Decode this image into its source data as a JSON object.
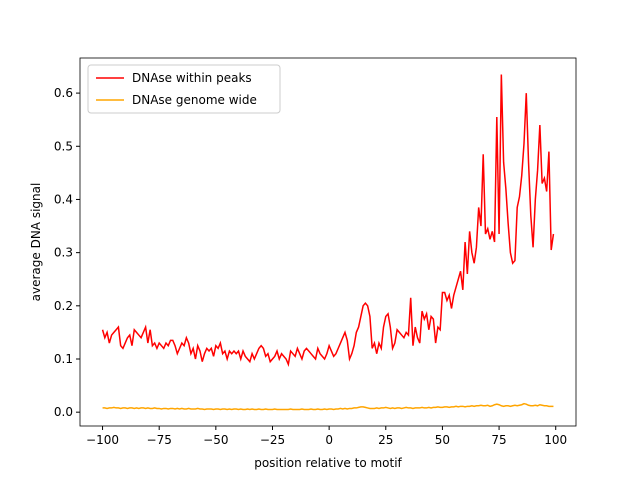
{
  "chart_data": {
    "type": "line",
    "xlabel": "position relative to motif",
    "ylabel": "average DNA signal",
    "x": [
      -100,
      -99,
      -98,
      -97,
      -96,
      -95,
      -94,
      -93,
      -92,
      -91,
      -90,
      -89,
      -88,
      -87,
      -86,
      -85,
      -84,
      -83,
      -82,
      -81,
      -80,
      -79,
      -78,
      -77,
      -76,
      -75,
      -74,
      -73,
      -72,
      -71,
      -70,
      -69,
      -68,
      -67,
      -66,
      -65,
      -64,
      -63,
      -62,
      -61,
      -60,
      -59,
      -58,
      -57,
      -56,
      -55,
      -54,
      -53,
      -52,
      -51,
      -50,
      -49,
      -48,
      -47,
      -46,
      -45,
      -44,
      -43,
      -42,
      -41,
      -40,
      -39,
      -38,
      -37,
      -36,
      -35,
      -34,
      -33,
      -32,
      -31,
      -30,
      -29,
      -28,
      -27,
      -26,
      -25,
      -24,
      -23,
      -22,
      -21,
      -20,
      -19,
      -18,
      -17,
      -16,
      -15,
      -14,
      -13,
      -12,
      -11,
      -10,
      -9,
      -8,
      -7,
      -6,
      -5,
      -4,
      -3,
      -2,
      -1,
      0,
      1,
      2,
      3,
      4,
      5,
      6,
      7,
      8,
      9,
      10,
      11,
      12,
      13,
      14,
      15,
      16,
      17,
      18,
      19,
      20,
      21,
      22,
      23,
      24,
      25,
      26,
      27,
      28,
      29,
      30,
      31,
      32,
      33,
      34,
      35,
      36,
      37,
      38,
      39,
      40,
      41,
      42,
      43,
      44,
      45,
      46,
      47,
      48,
      49,
      50,
      51,
      52,
      53,
      54,
      55,
      56,
      57,
      58,
      59,
      60,
      61,
      62,
      63,
      64,
      65,
      66,
      67,
      68,
      69,
      70,
      71,
      72,
      73,
      74,
      75,
      76,
      77,
      78,
      79,
      80,
      81,
      82,
      83,
      84,
      85,
      86,
      87,
      88,
      89,
      90,
      91,
      92,
      93,
      94,
      95,
      96,
      97,
      98,
      99
    ],
    "series": [
      {
        "name": "DNAse within peaks",
        "color": "#ff0000",
        "values": [
          0.155,
          0.14,
          0.15,
          0.13,
          0.145,
          0.15,
          0.155,
          0.16,
          0.125,
          0.12,
          0.13,
          0.14,
          0.145,
          0.125,
          0.155,
          0.15,
          0.145,
          0.14,
          0.15,
          0.16,
          0.13,
          0.155,
          0.125,
          0.13,
          0.12,
          0.13,
          0.125,
          0.12,
          0.13,
          0.125,
          0.135,
          0.135,
          0.125,
          0.11,
          0.12,
          0.13,
          0.125,
          0.14,
          0.13,
          0.11,
          0.12,
          0.1,
          0.125,
          0.115,
          0.095,
          0.11,
          0.12,
          0.115,
          0.12,
          0.105,
          0.125,
          0.12,
          0.13,
          0.11,
          0.115,
          0.1,
          0.115,
          0.11,
          0.115,
          0.11,
          0.115,
          0.1,
          0.115,
          0.105,
          0.1,
          0.095,
          0.11,
          0.1,
          0.11,
          0.12,
          0.125,
          0.12,
          0.105,
          0.11,
          0.095,
          0.1,
          0.105,
          0.115,
          0.1,
          0.11,
          0.105,
          0.1,
          0.09,
          0.115,
          0.11,
          0.105,
          0.12,
          0.11,
          0.1,
          0.115,
          0.12,
          0.115,
          0.11,
          0.105,
          0.1,
          0.12,
          0.11,
          0.105,
          0.1,
          0.11,
          0.125,
          0.115,
          0.105,
          0.11,
          0.12,
          0.13,
          0.14,
          0.15,
          0.135,
          0.1,
          0.11,
          0.125,
          0.15,
          0.16,
          0.18,
          0.2,
          0.205,
          0.2,
          0.18,
          0.12,
          0.13,
          0.11,
          0.13,
          0.12,
          0.16,
          0.18,
          0.185,
          0.16,
          0.12,
          0.13,
          0.155,
          0.15,
          0.145,
          0.14,
          0.15,
          0.145,
          0.215,
          0.125,
          0.16,
          0.14,
          0.13,
          0.19,
          0.175,
          0.185,
          0.155,
          0.18,
          0.175,
          0.13,
          0.16,
          0.155,
          0.225,
          0.225,
          0.21,
          0.22,
          0.195,
          0.22,
          0.235,
          0.25,
          0.265,
          0.23,
          0.32,
          0.26,
          0.34,
          0.3,
          0.28,
          0.31,
          0.385,
          0.35,
          0.485,
          0.335,
          0.345,
          0.325,
          0.34,
          0.32,
          0.555,
          0.335,
          0.635,
          0.47,
          0.42,
          0.355,
          0.3,
          0.28,
          0.285,
          0.385,
          0.405,
          0.445,
          0.505,
          0.6,
          0.47,
          0.37,
          0.31,
          0.4,
          0.455,
          0.54,
          0.43,
          0.44,
          0.415,
          0.49,
          0.305,
          0.335
        ]
      },
      {
        "name": "DNAse genome wide",
        "color": "#ffa500",
        "values": [
          0.008,
          0.008,
          0.007,
          0.008,
          0.008,
          0.009,
          0.008,
          0.008,
          0.007,
          0.008,
          0.008,
          0.007,
          0.008,
          0.008,
          0.007,
          0.008,
          0.007,
          0.008,
          0.008,
          0.007,
          0.008,
          0.007,
          0.007,
          0.008,
          0.007,
          0.007,
          0.006,
          0.007,
          0.007,
          0.006,
          0.007,
          0.007,
          0.006,
          0.007,
          0.006,
          0.007,
          0.006,
          0.006,
          0.007,
          0.006,
          0.006,
          0.006,
          0.007,
          0.006,
          0.006,
          0.005,
          0.006,
          0.006,
          0.006,
          0.005,
          0.006,
          0.006,
          0.005,
          0.006,
          0.006,
          0.005,
          0.006,
          0.005,
          0.006,
          0.006,
          0.005,
          0.006,
          0.005,
          0.005,
          0.006,
          0.005,
          0.006,
          0.005,
          0.005,
          0.006,
          0.005,
          0.005,
          0.006,
          0.005,
          0.005,
          0.005,
          0.006,
          0.005,
          0.005,
          0.005,
          0.005,
          0.005,
          0.005,
          0.006,
          0.005,
          0.005,
          0.005,
          0.005,
          0.006,
          0.005,
          0.005,
          0.005,
          0.006,
          0.005,
          0.005,
          0.006,
          0.005,
          0.005,
          0.006,
          0.005,
          0.006,
          0.006,
          0.005,
          0.006,
          0.006,
          0.007,
          0.006,
          0.007,
          0.006,
          0.007,
          0.007,
          0.008,
          0.008,
          0.009,
          0.01,
          0.01,
          0.009,
          0.008,
          0.007,
          0.007,
          0.007,
          0.008,
          0.007,
          0.008,
          0.008,
          0.009,
          0.008,
          0.007,
          0.008,
          0.007,
          0.008,
          0.008,
          0.007,
          0.008,
          0.009,
          0.008,
          0.008,
          0.007,
          0.008,
          0.008,
          0.008,
          0.009,
          0.008,
          0.008,
          0.009,
          0.008,
          0.009,
          0.009,
          0.01,
          0.009,
          0.009,
          0.01,
          0.01,
          0.009,
          0.01,
          0.01,
          0.011,
          0.01,
          0.011,
          0.011,
          0.01,
          0.011,
          0.011,
          0.012,
          0.011,
          0.012,
          0.012,
          0.013,
          0.012,
          0.012,
          0.013,
          0.011,
          0.012,
          0.014,
          0.015,
          0.014,
          0.012,
          0.011,
          0.012,
          0.012,
          0.011,
          0.012,
          0.013,
          0.012,
          0.013,
          0.014,
          0.016,
          0.015,
          0.013,
          0.012,
          0.012,
          0.013,
          0.012,
          0.014,
          0.013,
          0.012,
          0.012,
          0.011,
          0.011,
          0.011
        ]
      }
    ],
    "xlim": [
      -109.95,
      108.95
    ],
    "ylim": [
      -0.026,
      0.666
    ],
    "xticks": [
      {
        "value": -100,
        "label": "−100"
      },
      {
        "value": -75,
        "label": "−75"
      },
      {
        "value": -50,
        "label": "−50"
      },
      {
        "value": -25,
        "label": "−25"
      },
      0,
      25,
      50,
      75,
      100
    ],
    "yticks": [
      {
        "value": 0,
        "label": "0.0"
      },
      0.1,
      0.2,
      0.3,
      0.4,
      0.5,
      0.6
    ],
    "legend": "upper left"
  }
}
